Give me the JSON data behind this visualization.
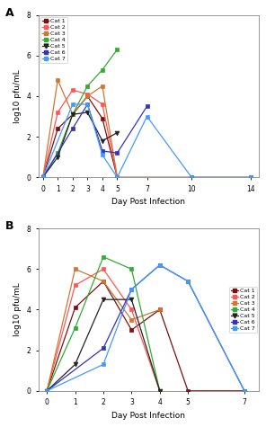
{
  "panel_A": {
    "title": "A",
    "xlabel": "Day Post Infection",
    "ylabel": "log10 pfu/mL",
    "xlim": [
      -0.3,
      14.5
    ],
    "ylim": [
      0,
      8
    ],
    "yticks": [
      0,
      2,
      4,
      6,
      8
    ],
    "xticks": [
      0,
      1,
      2,
      3,
      4,
      5,
      7,
      10,
      14
    ],
    "legend_loc": "upper left",
    "series": {
      "Cat 1": {
        "x": [
          0,
          1,
          2,
          3,
          4,
          5,
          10,
          14
        ],
        "y": [
          0,
          2.4,
          3.1,
          4.0,
          2.9,
          0,
          0,
          0
        ],
        "color": "#7B1010",
        "marker": "s"
      },
      "Cat 2": {
        "x": [
          0,
          1,
          2,
          3,
          4,
          5
        ],
        "y": [
          0,
          3.2,
          4.3,
          4.1,
          3.6,
          0
        ],
        "color": "#FF5555",
        "marker": "s"
      },
      "Cat 3": {
        "x": [
          0,
          1,
          2,
          3,
          4,
          5
        ],
        "y": [
          0,
          4.8,
          3.1,
          4.0,
          4.5,
          0
        ],
        "color": "#CC7733",
        "marker": "s"
      },
      "Cat 4": {
        "x": [
          0,
          1,
          2,
          3,
          4,
          5
        ],
        "y": [
          0,
          1.2,
          3.1,
          4.5,
          5.3,
          6.3
        ],
        "color": "#33AA33",
        "marker": "s"
      },
      "Cat 5": {
        "x": [
          0,
          1,
          2,
          3,
          4,
          5
        ],
        "y": [
          0,
          1.0,
          3.1,
          3.2,
          1.8,
          2.2
        ],
        "color": "#222222",
        "marker": "v"
      },
      "Cat 6": {
        "x": [
          0,
          2,
          3,
          4,
          5,
          7
        ],
        "y": [
          0,
          2.4,
          3.6,
          1.3,
          1.2,
          3.5
        ],
        "color": "#3333BB",
        "marker": "s"
      },
      "Cat 7": {
        "x": [
          0,
          2,
          3,
          4,
          5,
          7,
          10,
          14
        ],
        "y": [
          0,
          3.6,
          3.6,
          1.1,
          0,
          3.0,
          0,
          0
        ],
        "color": "#4499FF",
        "marker": "s"
      }
    }
  },
  "panel_B": {
    "title": "B",
    "xlabel": "Day Post Infection",
    "ylabel": "log10 pfu/mL",
    "xlim": [
      -0.3,
      7.5
    ],
    "ylim": [
      0,
      8
    ],
    "yticks": [
      0,
      2,
      4,
      6,
      8
    ],
    "xticks": [
      0,
      1,
      2,
      3,
      4,
      5,
      7
    ],
    "legend_loc": "center right",
    "series": {
      "Cat 1": {
        "x": [
          0,
          1,
          2,
          3,
          4,
          5,
          7
        ],
        "y": [
          0,
          4.1,
          5.4,
          3.0,
          4.0,
          0,
          0
        ],
        "color": "#7B1010",
        "marker": "s"
      },
      "Cat 2": {
        "x": [
          0,
          1,
          2,
          3,
          4
        ],
        "y": [
          0,
          5.2,
          6.0,
          4.0,
          0
        ],
        "color": "#FF5555",
        "marker": "s"
      },
      "Cat 3": {
        "x": [
          0,
          1,
          2,
          3,
          4
        ],
        "y": [
          0,
          6.0,
          5.4,
          3.5,
          4.0
        ],
        "color": "#CC7733",
        "marker": "s"
      },
      "Cat 4": {
        "x": [
          0,
          1,
          2,
          3,
          4
        ],
        "y": [
          0,
          3.1,
          6.6,
          6.0,
          0
        ],
        "color": "#33AA33",
        "marker": "s"
      },
      "Cat 5": {
        "x": [
          0,
          1,
          2,
          3,
          4
        ],
        "y": [
          0,
          1.3,
          4.5,
          4.5,
          0
        ],
        "color": "#222222",
        "marker": "v"
      },
      "Cat 6": {
        "x": [
          0,
          2,
          3,
          4,
          5,
          7
        ],
        "y": [
          0,
          2.1,
          5.0,
          6.2,
          5.4,
          0
        ],
        "color": "#3333BB",
        "marker": "s"
      },
      "Cat 7": {
        "x": [
          0,
          2,
          3,
          4,
          5,
          7
        ],
        "y": [
          0,
          1.3,
          5.0,
          6.2,
          5.4,
          0
        ],
        "color": "#4499FF",
        "marker": "s"
      }
    }
  },
  "legend_cats": [
    "Cat 1",
    "Cat 2",
    "Cat 3",
    "Cat 4",
    "Cat 5",
    "Cat 6",
    "Cat 7"
  ],
  "bg_color": "#FFFFFF"
}
